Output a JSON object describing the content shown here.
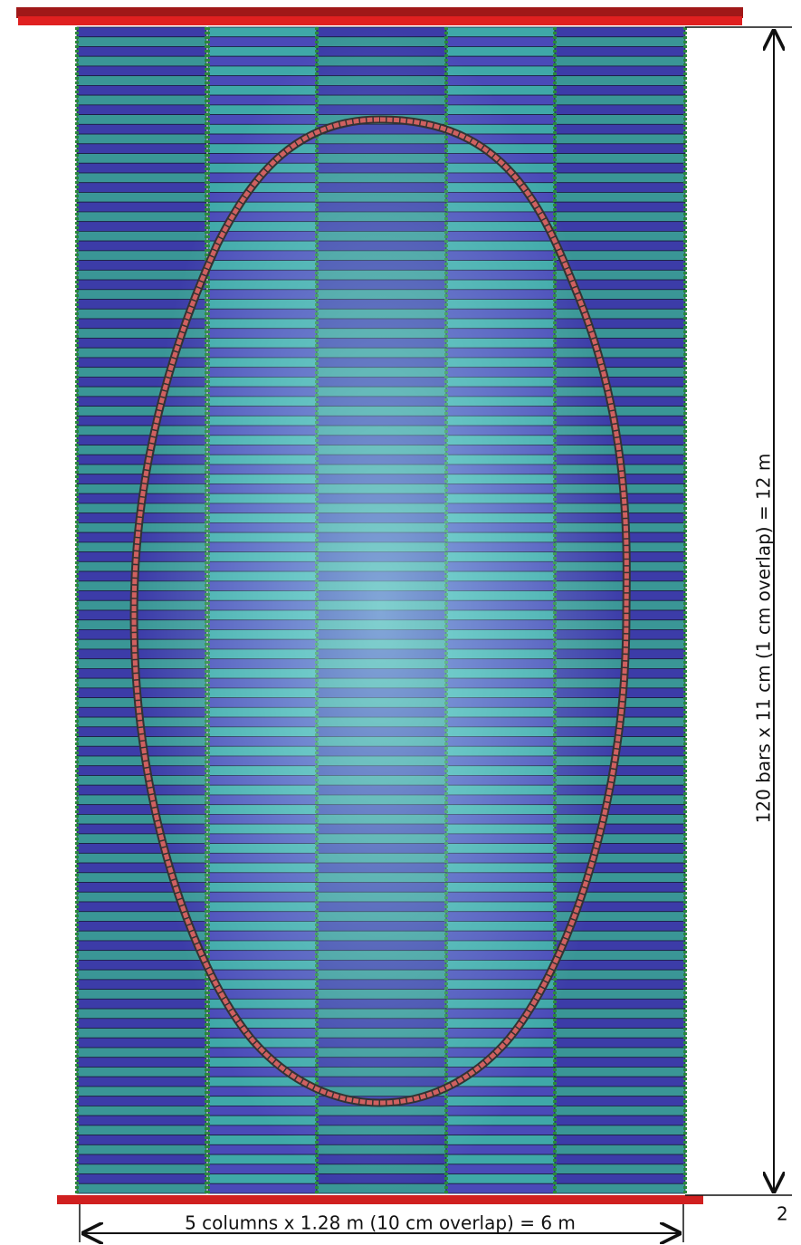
{
  "labels": {
    "height": "120 bars x 11 cm (1 cm overlap) = 12 m",
    "width": "5 columns x 1.28 m (10 cm overlap) = 6 m",
    "corner": "2"
  }
}
